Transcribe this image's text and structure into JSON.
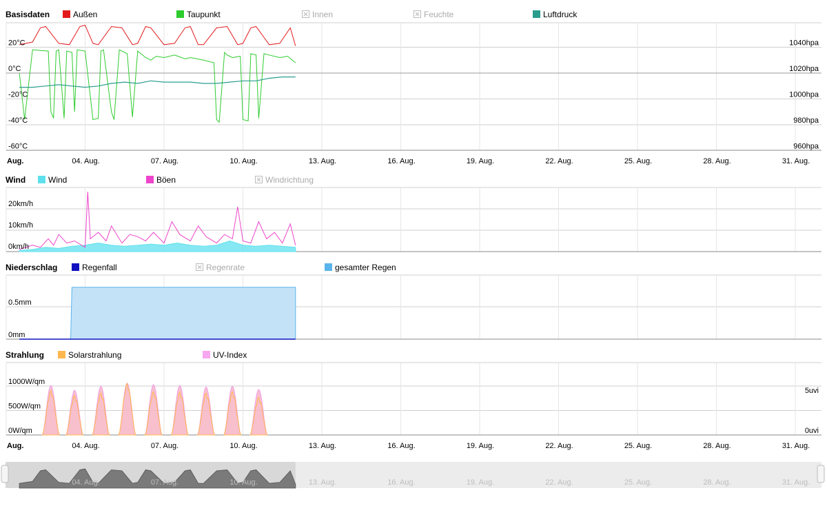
{
  "x_axis": {
    "start_label": "Aug.",
    "ticks": [
      "04. Aug.",
      "07. Aug.",
      "10. Aug.",
      "13. Aug.",
      "16. Aug.",
      "19. Aug.",
      "22. Aug.",
      "25. Aug.",
      "28. Aug.",
      "31. Aug."
    ]
  },
  "colors": {
    "aussen": "#e31a1c",
    "taupunkt": "#2ecc2e",
    "luftdruck": "#2a9d8f",
    "wind": "#5ee0ee",
    "boeen": "#ee44cc",
    "regenfall": "#1010c0",
    "gesamter_regen": "#5ab4ec",
    "solar": "#ffb84d",
    "uv": "#f7a6f0"
  },
  "chart_data": [
    {
      "type": "line",
      "title": "Basisdaten",
      "legend": [
        {
          "name": "Außen",
          "enabled": true
        },
        {
          "name": "Taupunkt",
          "enabled": true
        },
        {
          "name": "Innen",
          "enabled": false
        },
        {
          "name": "Feuchte",
          "enabled": false
        },
        {
          "name": "Luftdruck",
          "enabled": true
        }
      ],
      "x_range_days": [
        1,
        31
      ],
      "y_left": {
        "ticks": [
          "20°C",
          "0°C",
          "-20°C",
          "-40°C",
          "-60°C"
        ],
        "values": [
          20,
          0,
          -20,
          -40,
          -60
        ]
      },
      "y_right": {
        "ticks": [
          "1040hpa",
          "1020hpa",
          "1000hpa",
          "980hpa",
          "960hpa"
        ],
        "values": [
          1040,
          1020,
          1000,
          980,
          960
        ]
      },
      "series": [
        {
          "name": "Außen",
          "unit": "°C",
          "x": [
            1.5,
            2,
            2.3,
            2.5,
            3,
            3.4,
            3.8,
            4,
            4.3,
            4.5,
            5,
            5.4,
            5.8,
            6,
            6.3,
            6.5,
            7,
            7.4,
            7.8,
            8,
            8.3,
            8.5,
            9,
            9.4,
            9.8,
            10,
            10.3,
            10.5,
            11,
            11.4,
            11.8,
            12
          ],
          "y": [
            22,
            24,
            35,
            36,
            23,
            22,
            36,
            37,
            23,
            22,
            36,
            35,
            22,
            23,
            36,
            35,
            22,
            23,
            35,
            36,
            22,
            22,
            35,
            36,
            22,
            23,
            35,
            36,
            22,
            23,
            35,
            21
          ]
        },
        {
          "name": "Taupunkt",
          "unit": "°C",
          "x": [
            1.5,
            1.7,
            2,
            2.6,
            2.7,
            2.8,
            2.9,
            3,
            3.2,
            3.3,
            3.5,
            3.6,
            3.7,
            4,
            4.3,
            4.5,
            4.6,
            4.7,
            5,
            5.1,
            5.3,
            5.5,
            5.6,
            5.8,
            6,
            6.3,
            6.5,
            6.7,
            7,
            7.4,
            7.8,
            8,
            8.5,
            8.9,
            9,
            9.1,
            9.3,
            9.4,
            9.6,
            9.9,
            10,
            10.2,
            10.3,
            10.5,
            10.6,
            10.8,
            11,
            11.4,
            11.7,
            12
          ],
          "y": [
            0,
            -36,
            18,
            17,
            -30,
            -35,
            17,
            18,
            -35,
            17,
            16,
            -30,
            18,
            17,
            -36,
            -35,
            17,
            18,
            -30,
            -36,
            18,
            16,
            15,
            -34,
            17,
            12,
            10,
            13,
            12,
            14,
            11,
            12,
            10,
            8,
            -36,
            -38,
            16,
            14,
            12,
            13,
            -36,
            -37,
            15,
            14,
            -35,
            15,
            14,
            12,
            13,
            8
          ]
        },
        {
          "name": "Luftdruck",
          "unit": "hpa",
          "x": [
            1.5,
            2,
            2.5,
            3,
            3.5,
            4,
            4.5,
            5,
            5.5,
            6,
            6.5,
            7,
            7.5,
            8,
            8.5,
            9,
            9.5,
            10,
            10.5,
            11,
            11.5,
            12
          ],
          "y": [
            1009,
            1009,
            1010,
            1011,
            1010,
            1009,
            1010,
            1012,
            1013,
            1012,
            1014,
            1013,
            1013,
            1013,
            1012,
            1012,
            1013,
            1014,
            1014,
            1016,
            1017,
            1017
          ]
        }
      ]
    },
    {
      "type": "area",
      "title": "Wind",
      "legend": [
        {
          "name": "Wind",
          "enabled": true
        },
        {
          "name": "Böen",
          "enabled": true
        },
        {
          "name": "Windrichtung",
          "enabled": false
        }
      ],
      "y_left": {
        "ticks": [
          "20km/h",
          "10km/h",
          "0km/h"
        ],
        "values": [
          20,
          10,
          0
        ]
      },
      "series": [
        {
          "name": "Wind",
          "unit": "km/h",
          "x": [
            1.5,
            2,
            2.5,
            3,
            3.5,
            4,
            4.5,
            5,
            5.5,
            6,
            6.5,
            7,
            7.5,
            8,
            8.5,
            9,
            9.5,
            10,
            10.5,
            11,
            11.5,
            12
          ],
          "y": [
            0.5,
            1,
            2,
            1.5,
            2.5,
            3,
            4,
            3,
            2.5,
            3,
            3.5,
            3,
            4,
            3,
            2.5,
            3,
            5,
            3,
            2.5,
            3,
            2.5,
            2
          ]
        },
        {
          "name": "Böen",
          "unit": "km/h",
          "x": [
            1.5,
            2,
            2.3,
            2.6,
            2.8,
            3,
            3.3,
            3.6,
            4,
            4.1,
            4.2,
            4.5,
            4.8,
            5,
            5.4,
            5.7,
            6,
            6.3,
            6.6,
            7,
            7.3,
            7.6,
            8,
            8.3,
            8.6,
            9,
            9.3,
            9.6,
            9.8,
            10,
            10.3,
            10.6,
            10.9,
            11.2,
            11.5,
            11.8,
            12
          ],
          "y": [
            1,
            3,
            2,
            6,
            3,
            8,
            4,
            5,
            2,
            28,
            6,
            9,
            5,
            12,
            4,
            8,
            7,
            5,
            9,
            4,
            14,
            8,
            5,
            12,
            7,
            4,
            8,
            6,
            21,
            5,
            4,
            14,
            6,
            9,
            4,
            13,
            3
          ]
        }
      ]
    },
    {
      "type": "area",
      "title": "Niederschlag",
      "legend": [
        {
          "name": "Regenfall",
          "enabled": true
        },
        {
          "name": "Regenrate",
          "enabled": false
        },
        {
          "name": "gesamter Regen",
          "enabled": true
        }
      ],
      "y_left": {
        "ticks": [
          "0.5mm",
          "0mm"
        ],
        "values": [
          0.5,
          0
        ]
      },
      "series": [
        {
          "name": "Regenfall",
          "unit": "mm",
          "x": [
            1.5,
            12
          ],
          "y": [
            0,
            0
          ]
        },
        {
          "name": "gesamter Regen",
          "unit": "mm",
          "x": [
            1.5,
            3.45,
            3.5,
            12
          ],
          "y": [
            0,
            0,
            0.8,
            0.8
          ]
        }
      ]
    },
    {
      "type": "area",
      "title": "Strahlung",
      "legend": [
        {
          "name": "Solarstrahlung",
          "enabled": true
        },
        {
          "name": "UV-Index",
          "enabled": true
        }
      ],
      "y_left": {
        "ticks": [
          "1000W/qm",
          "500W/qm",
          "0W/qm"
        ],
        "values": [
          1000,
          500,
          0
        ]
      },
      "y_right": {
        "ticks": [
          "5uvi",
          "0uvi"
        ],
        "values": [
          5,
          0
        ]
      },
      "series": [
        {
          "name": "Solarstrahlung",
          "unit": "W/qm",
          "peaks": [
            {
              "day": 2.7,
              "value": 900
            },
            {
              "day": 3.6,
              "value": 800
            },
            {
              "day": 4.6,
              "value": 850
            },
            {
              "day": 5.6,
              "value": 1050
            },
            {
              "day": 6.6,
              "value": 880
            },
            {
              "day": 7.6,
              "value": 870
            },
            {
              "day": 8.6,
              "value": 850
            },
            {
              "day": 9.6,
              "value": 880
            },
            {
              "day": 10.6,
              "value": 760
            }
          ]
        },
        {
          "name": "UV-Index",
          "unit": "uvi",
          "peaks": [
            {
              "day": 2.7,
              "value": 6.2
            },
            {
              "day": 3.6,
              "value": 5.6
            },
            {
              "day": 4.6,
              "value": 6.1
            },
            {
              "day": 5.6,
              "value": 6.5
            },
            {
              "day": 6.6,
              "value": 6.3
            },
            {
              "day": 7.6,
              "value": 6.2
            },
            {
              "day": 8.6,
              "value": 6.0
            },
            {
              "day": 9.6,
              "value": 6.1
            },
            {
              "day": 10.6,
              "value": 5.7
            }
          ]
        }
      ]
    }
  ]
}
